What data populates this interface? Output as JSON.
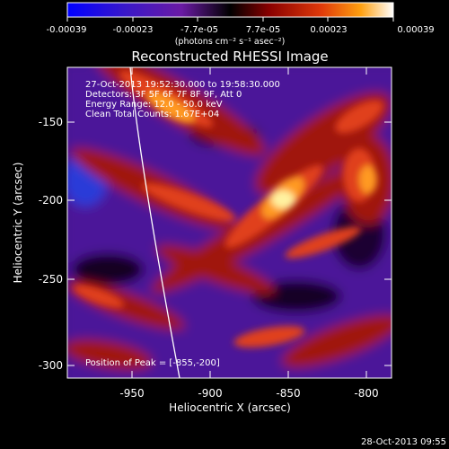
{
  "colorbar": {
    "ticks": [
      "-0.00039",
      "-0.00023",
      "-7.7e-05",
      "7.7e-05",
      "0.00023",
      "0.00039"
    ],
    "units": "(photons cm⁻² s⁻¹ asec⁻²)"
  },
  "image": {
    "title": "Reconstructed RHESSI Image",
    "info_lines": [
      "27-Oct-2013 19:52:30.000 to 19:58:30.000",
      "Detectors: 3F 5F 6F 7F 8F 9F, Att 0",
      "Energy Range: 12.0 - 50.0 keV",
      "Clean    Total Counts: 1.67E+04"
    ],
    "peak_text": "Position of Peak = [-855,-200]",
    "xlabel": "Heliocentric X (arcsec)",
    "ylabel": "Heliocentric Y (arcsec)",
    "xticks": [
      "-950",
      "-900",
      "-850",
      "-800"
    ],
    "yticks": [
      "-150",
      "-200",
      "-250",
      "-300"
    ],
    "colors": {
      "bg": "#000000",
      "purple": "#5a1aa8",
      "dark_red": "#8a0c06",
      "red": "#d2260f",
      "orange": "#f07818",
      "yellow": "#ffe070",
      "limb": "#ffffff"
    }
  },
  "footer": {
    "timestamp": "28-Oct-2013 09:55"
  }
}
